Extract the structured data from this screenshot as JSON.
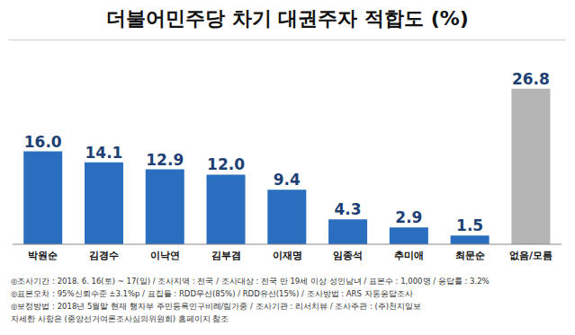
{
  "chart_data": {
    "type": "bar",
    "title": "더불어민주당 차기 대권주자 적합도 (%)",
    "categories": [
      "박원순",
      "김경수",
      "이낙연",
      "김부겸",
      "이재명",
      "임종석",
      "추미애",
      "최문순",
      "없음/모름"
    ],
    "values": [
      16.0,
      14.1,
      12.9,
      12.0,
      9.4,
      4.3,
      2.9,
      1.5,
      26.8
    ],
    "value_labels": [
      "16.0",
      "14.1",
      "12.9",
      "12.0",
      "9.4",
      "4.3",
      "2.9",
      "1.5",
      "26.8"
    ],
    "colors": [
      "#2a6ebf",
      "#2a6ebf",
      "#2a6ebf",
      "#2a6ebf",
      "#2a6ebf",
      "#2a6ebf",
      "#2a6ebf",
      "#2a6ebf",
      "#b5b5b5"
    ],
    "ylim": [
      0,
      30
    ],
    "data_labels": true,
    "tick_labels": "x",
    "grid": false,
    "annotations": [
      "◎조사기간 : 2018. 6. 16(토) ~ 17(일) / 조사지역 : 전국 / 조사대상 : 전국 만 19세 이상 성인남녀 / 표본수 : 1,000명 / 응답률 : 3.2%",
      "◎표본오차 : 95%신뢰수준 ±3.1%p / 표집틀 : RDD무선(85%) / RDD유선(15%) / 조사방법 : ARS 자동응답조사",
      "◎보정방법 : 2018년 5월말 현재 행자부 주민등록인구비례/림가중 / 조사기관 : 리서치뷰 / 조사주관 : (주)천지일보",
      "자세한 사항은 (중앙선거여론조사심의위원회) 홈페이지 참조"
    ]
  }
}
